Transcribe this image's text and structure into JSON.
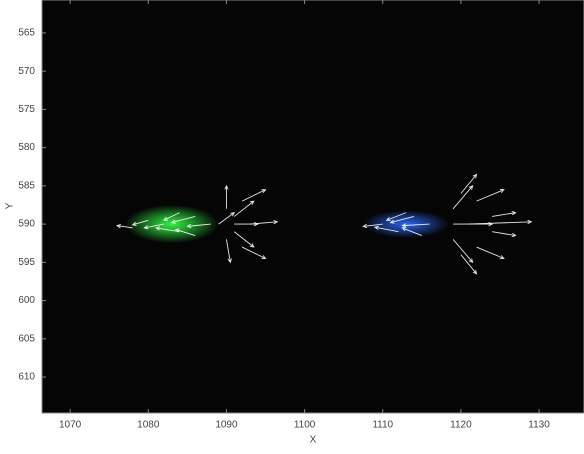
{
  "chart_data": {
    "type": "quiver",
    "x_label": "X",
    "y_label": "Y",
    "xlim": [
      1066.4,
      1135.75
    ],
    "ylim": [
      560.7,
      614.7
    ],
    "y_inverted": true,
    "xticks": [
      1070,
      1080,
      1090,
      1100,
      1110,
      1120,
      1130
    ],
    "yticks": [
      565,
      570,
      575,
      580,
      585,
      590,
      595,
      600,
      605,
      610
    ],
    "background": "#050505",
    "arrow_color": "#ffffff",
    "glows": [
      {
        "color": "#33ff44",
        "x": 1083,
        "y": 590,
        "rx": 6,
        "ry": 2.5
      },
      {
        "color": "#2a6bff",
        "x": 1113,
        "y": 590,
        "rx": 5.5,
        "ry": 1.8
      }
    ],
    "arrows": {
      "x": [
        1088,
        1086,
        1084,
        1082,
        1080,
        1086,
        1078,
        1084,
        1091,
        1091,
        1091,
        1090,
        1090,
        1092,
        1092,
        1093,
        1089,
        1116,
        1114,
        1112,
        1110,
        1115,
        1113,
        1119,
        1121,
        1119,
        1119,
        1120,
        1120,
        1122,
        1122,
        1124,
        1124
      ],
      "y": [
        590,
        589,
        591,
        590,
        589.5,
        591.5,
        590.5,
        588.5,
        590,
        589,
        591,
        588,
        592,
        587,
        593,
        590,
        590,
        590,
        589,
        591,
        590,
        591.5,
        588.5,
        590,
        590,
        588,
        592,
        586,
        594,
        587,
        593,
        589,
        591
      ],
      "u": [
        -3,
        -3,
        -3,
        -2.5,
        -2,
        -2.5,
        -2,
        -2,
        3,
        2.5,
        2.5,
        0,
        0.5,
        3,
        3,
        3.5,
        2,
        -3.5,
        -3,
        -3,
        -2.5,
        -2.5,
        -2.5,
        5,
        8,
        2.5,
        2.5,
        2,
        2,
        3.5,
        3.5,
        3,
        3
      ],
      "v": [
        0.3,
        0.8,
        -0.5,
        0.5,
        0.6,
        -0.8,
        -0.3,
        1,
        0,
        -2,
        2,
        -3,
        3,
        -1.5,
        1.5,
        -0.3,
        -1.5,
        0.2,
        0.8,
        -0.6,
        0.3,
        -1,
        1,
        0,
        -0.3,
        -3,
        3,
        -2.5,
        2.5,
        -1.5,
        1.5,
        -0.5,
        0.5
      ]
    }
  }
}
